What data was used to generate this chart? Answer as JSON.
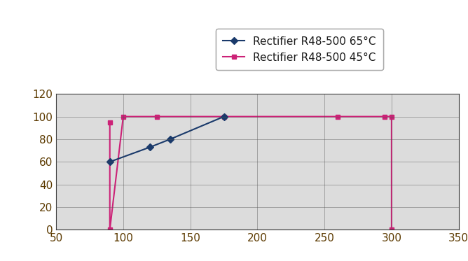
{
  "blue_x": [
    90,
    120,
    135,
    175
  ],
  "blue_y": [
    60,
    73,
    80,
    100
  ],
  "pink_x": [
    90,
    90,
    100,
    125,
    175,
    260,
    295,
    300,
    300
  ],
  "pink_y": [
    95,
    0,
    100,
    100,
    100,
    100,
    100,
    100,
    0
  ],
  "blue_color": "#1a3a6b",
  "pink_color": "#cc2277",
  "legend_label_blue": "Rectifier R48-500 65°C",
  "legend_label_pink": "Rectifier R48-500 45°C",
  "xlim": [
    50,
    350
  ],
  "ylim": [
    0,
    120
  ],
  "xticks": [
    50,
    100,
    150,
    200,
    250,
    300,
    350
  ],
  "yticks": [
    0,
    20,
    40,
    60,
    80,
    100,
    120
  ],
  "grid_color": "#555555",
  "bg_color": "#dcdcdc",
  "legend_bg": "#ffffff",
  "fig_bg": "#ffffff",
  "tick_color": "#5c3a00",
  "marker_blue": "D",
  "marker_pink": "s",
  "linewidth": 1.5,
  "markersize": 5
}
